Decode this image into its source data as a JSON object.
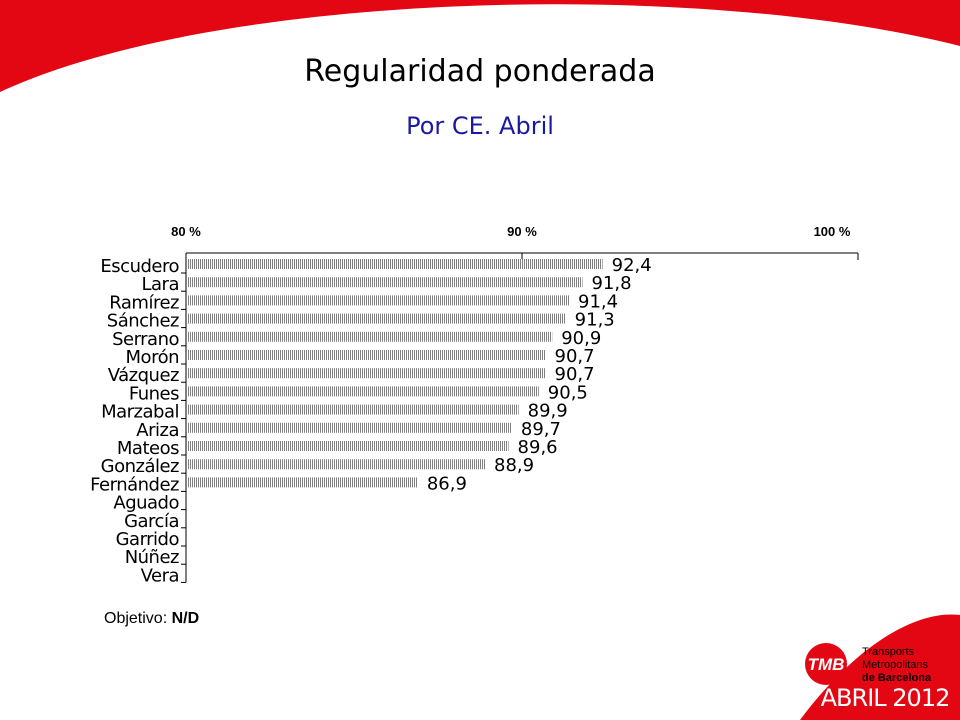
{
  "slide": {
    "title": "Regularidad ponderada",
    "subtitle": "Por CE. Abril",
    "objective_label": "Objetivo:",
    "objective_value": "N/D",
    "logo": {
      "mark": "TMB",
      "line1": "Transports",
      "line2": "Metropolitans",
      "line3": "de Barcelona"
    },
    "date": "ABRIL 2012"
  },
  "colors": {
    "brand_red": "#e30613",
    "subtitle_blue": "#1a1aa0",
    "bar_pattern": "#808080"
  },
  "chart_data": {
    "type": "bar",
    "orientation": "horizontal",
    "xaxis_position": "top",
    "xlim": [
      80,
      100
    ],
    "xticks": [
      80,
      90,
      100
    ],
    "xtick_labels": [
      "80 %",
      "90 %",
      "100 %"
    ],
    "categories": [
      "Escudero",
      "Lara",
      "Ramírez",
      "Sánchez",
      "Serrano",
      "Morón",
      "Vázquez",
      "Funes",
      "Marzabal",
      "Ariza",
      "Mateos",
      "González",
      "Fernández",
      "Aguado",
      "García",
      "Garrido",
      "Núñez",
      "Vera"
    ],
    "values": [
      92.4,
      91.8,
      91.4,
      91.3,
      90.9,
      90.7,
      90.7,
      90.5,
      89.9,
      89.7,
      89.6,
      88.9,
      86.9,
      null,
      null,
      null,
      null,
      null
    ],
    "data_labels": [
      "92,4",
      "91,8",
      "91,4",
      "91,3",
      "90,9",
      "90,7",
      "90,7",
      "90,5",
      "89,9",
      "89,7",
      "89,6",
      "88,9",
      "86,9",
      "",
      "",
      "",
      "",
      ""
    ],
    "grid": false
  }
}
